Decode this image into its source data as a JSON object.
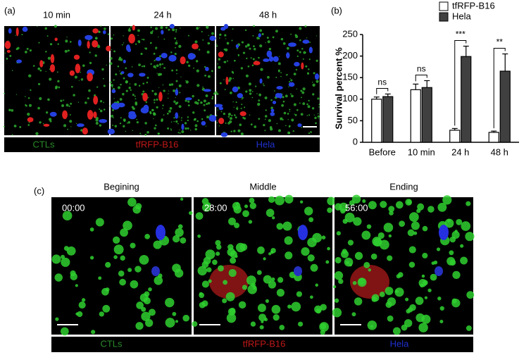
{
  "panel_a": {
    "label": "(a)",
    "image_titles": [
      "10 min",
      "24 h",
      "48 h"
    ],
    "legend": [
      "CTLs",
      "tfRFP-B16",
      "Hela"
    ]
  },
  "panel_b_label": "(b)",
  "chart_data": {
    "type": "bar",
    "ylabel": "Survival percent %",
    "categories": [
      "Before",
      "10 min",
      "24 h",
      "48 h"
    ],
    "series": [
      {
        "name": "tfRFP-B16",
        "color": "#ffffff",
        "values": [
          100,
          122,
          28,
          23
        ],
        "errors": [
          5,
          13,
          4,
          3
        ]
      },
      {
        "name": "Hela",
        "color": "#404040",
        "values": [
          106,
          127,
          199,
          165
        ],
        "errors": [
          6,
          16,
          24,
          40
        ]
      }
    ],
    "annotations": [
      "ns",
      "ns",
      "***",
      "**"
    ],
    "ylim": [
      0,
      250
    ],
    "yticks": [
      0,
      50,
      100,
      150,
      200,
      250
    ],
    "legend": "top-right"
  },
  "panel_c": {
    "label": "(c)",
    "image_titles": [
      "Begining",
      "Middle",
      "Ending"
    ],
    "timestamps": [
      "00:00",
      "28:00",
      "56:00"
    ],
    "legend": [
      "CTLs",
      "tfRFP-B16",
      "Hela"
    ]
  }
}
